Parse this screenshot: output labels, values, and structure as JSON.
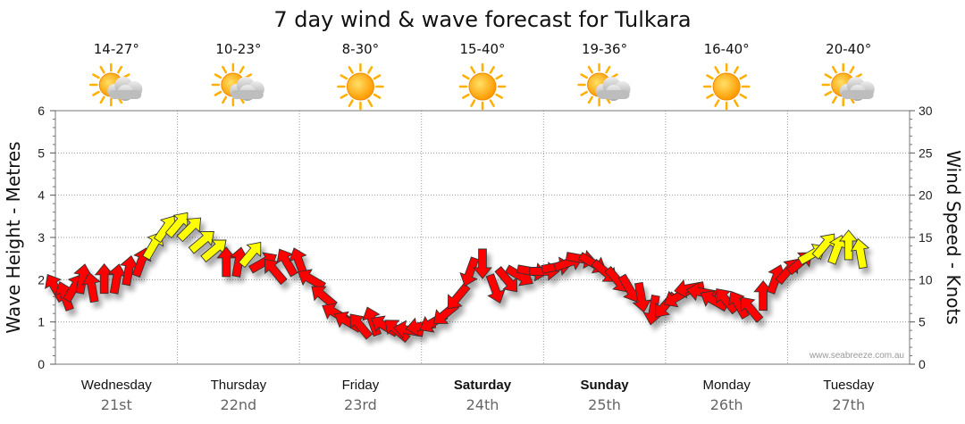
{
  "page": {
    "title": "7 day wind & wave forecast for Tulkara",
    "watermark": "www.seabreeze.com.au"
  },
  "chart_data": {
    "type": "line",
    "title": "7 day wind & wave forecast for Tulkara",
    "ylabel": "Wave Height - Metres",
    "y2label": "Wind Speed - Knots",
    "ylim": [
      0,
      6
    ],
    "y2lim": [
      0,
      30
    ],
    "yticks": [
      "0",
      "1",
      "2",
      "3",
      "4",
      "5",
      "6"
    ],
    "y2ticks": [
      "0",
      "5",
      "10",
      "15",
      "20",
      "25",
      "30"
    ],
    "days": [
      {
        "name": "Wednesday",
        "date": "21st",
        "temp": "14-27°",
        "icon": "partly-cloudy-icon",
        "bold": false
      },
      {
        "name": "Thursday",
        "date": "22nd",
        "temp": "10-23°",
        "icon": "partly-cloudy-icon",
        "bold": false
      },
      {
        "name": "Friday",
        "date": "23rd",
        "temp": "8-30°",
        "icon": "sunny-icon",
        "bold": false
      },
      {
        "name": "Saturday",
        "date": "24th",
        "temp": "15-40°",
        "icon": "sunny-icon",
        "bold": true
      },
      {
        "name": "Sunday",
        "date": "25th",
        "temp": "19-36°",
        "icon": "partly-cloudy-icon",
        "bold": true
      },
      {
        "name": "Monday",
        "date": "26th",
        "temp": "16-40°",
        "icon": "sunny-icon",
        "bold": false
      },
      {
        "name": "Tuesday",
        "date": "27th",
        "temp": "20-40°",
        "icon": "partly-cloudy-icon",
        "bold": false
      }
    ],
    "colors": {
      "wind_strong": "#ffff00",
      "wind_moderate": "#ff0000",
      "arrow_stroke": "#333333",
      "grid": "#999999",
      "sun": "#ffb000",
      "cloud": "#c8c8c8"
    },
    "wind_series": {
      "name": "Wind Speed",
      "comment": "time in days from start of Wednesday (x range 0-7), speed in knots, direction in degrees the arrow points (0 = up, clockwise)",
      "points": [
        {
          "t": 0.0,
          "speed": 9,
          "dir": 330
        },
        {
          "t": 0.08,
          "speed": 8,
          "dir": 340
        },
        {
          "t": 0.15,
          "speed": 9,
          "dir": 30
        },
        {
          "t": 0.22,
          "speed": 10,
          "dir": 10
        },
        {
          "t": 0.3,
          "speed": 9,
          "dir": 350
        },
        {
          "t": 0.4,
          "speed": 10,
          "dir": 0
        },
        {
          "t": 0.5,
          "speed": 10,
          "dir": 10
        },
        {
          "t": 0.6,
          "speed": 11,
          "dir": 10
        },
        {
          "t": 0.7,
          "speed": 12,
          "dir": 20
        },
        {
          "t": 0.8,
          "speed": 14,
          "dir": 30
        },
        {
          "t": 0.9,
          "speed": 16,
          "dir": 35
        },
        {
          "t": 1.0,
          "speed": 16.5,
          "dir": 40
        },
        {
          "t": 1.1,
          "speed": 16,
          "dir": 45
        },
        {
          "t": 1.2,
          "speed": 14.5,
          "dir": 50
        },
        {
          "t": 1.3,
          "speed": 13.5,
          "dir": 50
        },
        {
          "t": 1.4,
          "speed": 12,
          "dir": 0
        },
        {
          "t": 1.5,
          "speed": 12,
          "dir": 10
        },
        {
          "t": 1.6,
          "speed": 13,
          "dir": 40
        },
        {
          "t": 1.7,
          "speed": 12,
          "dir": 60
        },
        {
          "t": 1.8,
          "speed": 11,
          "dir": 320
        },
        {
          "t": 1.9,
          "speed": 12,
          "dir": 330
        },
        {
          "t": 2.0,
          "speed": 12,
          "dir": 340
        },
        {
          "t": 2.1,
          "speed": 10,
          "dir": 300
        },
        {
          "t": 2.2,
          "speed": 8,
          "dir": 310
        },
        {
          "t": 2.3,
          "speed": 6,
          "dir": 300
        },
        {
          "t": 2.4,
          "speed": 5,
          "dir": 300
        },
        {
          "t": 2.5,
          "speed": 4.5,
          "dir": 320
        },
        {
          "t": 2.6,
          "speed": 5,
          "dir": 340
        },
        {
          "t": 2.7,
          "speed": 4.5,
          "dir": 300
        },
        {
          "t": 2.8,
          "speed": 4,
          "dir": 310
        },
        {
          "t": 2.9,
          "speed": 4,
          "dir": 280
        },
        {
          "t": 3.0,
          "speed": 4.5,
          "dir": 260
        },
        {
          "t": 3.1,
          "speed": 5,
          "dir": 240
        },
        {
          "t": 3.2,
          "speed": 6,
          "dir": 230
        },
        {
          "t": 3.3,
          "speed": 8,
          "dir": 220
        },
        {
          "t": 3.4,
          "speed": 11,
          "dir": 200
        },
        {
          "t": 3.5,
          "speed": 12,
          "dir": 180
        },
        {
          "t": 3.6,
          "speed": 9,
          "dir": 160
        },
        {
          "t": 3.7,
          "speed": 10,
          "dir": 140
        },
        {
          "t": 3.8,
          "speed": 10.5,
          "dir": 120
        },
        {
          "t": 3.9,
          "speed": 11,
          "dir": 100
        },
        {
          "t": 4.0,
          "speed": 11,
          "dir": 90
        },
        {
          "t": 4.1,
          "speed": 11.5,
          "dir": 80
        },
        {
          "t": 4.2,
          "speed": 12,
          "dir": 70
        },
        {
          "t": 4.3,
          "speed": 12.5,
          "dir": 100
        },
        {
          "t": 4.4,
          "speed": 12,
          "dir": 120
        },
        {
          "t": 4.5,
          "speed": 11,
          "dir": 130
        },
        {
          "t": 4.6,
          "speed": 10,
          "dir": 140
        },
        {
          "t": 4.7,
          "speed": 9,
          "dir": 150
        },
        {
          "t": 4.8,
          "speed": 8,
          "dir": 170
        },
        {
          "t": 4.9,
          "speed": 6.5,
          "dir": 190
        },
        {
          "t": 5.0,
          "speed": 7,
          "dir": 220
        },
        {
          "t": 5.1,
          "speed": 8,
          "dir": 240
        },
        {
          "t": 5.2,
          "speed": 9,
          "dir": 260
        },
        {
          "t": 5.3,
          "speed": 8.5,
          "dir": 280
        },
        {
          "t": 5.4,
          "speed": 7.5,
          "dir": 300
        },
        {
          "t": 5.5,
          "speed": 7.5,
          "dir": 320
        },
        {
          "t": 5.6,
          "speed": 7,
          "dir": 330
        },
        {
          "t": 5.7,
          "speed": 6.5,
          "dir": 320
        },
        {
          "t": 5.8,
          "speed": 8,
          "dir": 0
        },
        {
          "t": 5.9,
          "speed": 10,
          "dir": 20
        },
        {
          "t": 6.0,
          "speed": 11,
          "dir": 40
        },
        {
          "t": 6.1,
          "speed": 12,
          "dir": 50
        },
        {
          "t": 6.2,
          "speed": 13,
          "dir": 60
        },
        {
          "t": 6.3,
          "speed": 14,
          "dir": 40
        },
        {
          "t": 6.4,
          "speed": 13.5,
          "dir": 20
        },
        {
          "t": 6.5,
          "speed": 14,
          "dir": 0
        },
        {
          "t": 6.6,
          "speed": 13,
          "dir": 350
        }
      ]
    }
  }
}
